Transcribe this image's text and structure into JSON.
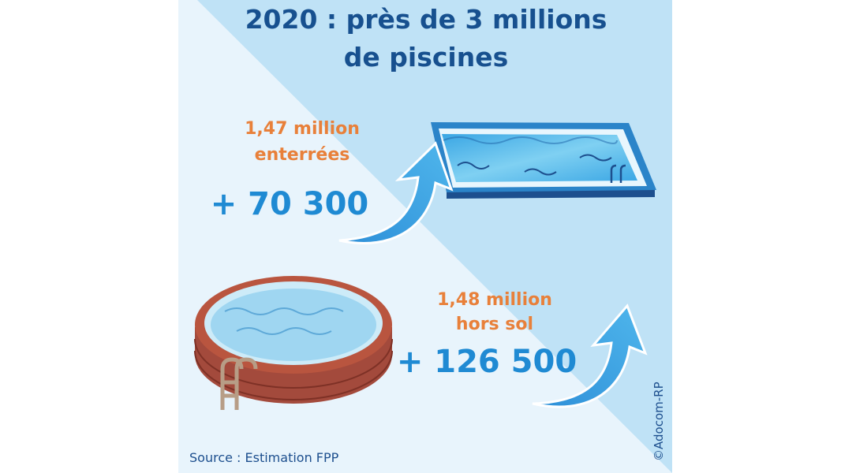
{
  "title": {
    "lines": [
      "2020 : près de 3 millions",
      "de piscines"
    ]
  },
  "items": [
    {
      "label": [
        "1,47 million",
        "enterrées"
      ],
      "increase": "+ 70 300"
    },
    {
      "label": [
        "1,48 million",
        "hors sol"
      ],
      "increase": "+ 126 500"
    }
  ],
  "source": "Source : Estimation FPP",
  "credit": "©Adocom-RP"
}
